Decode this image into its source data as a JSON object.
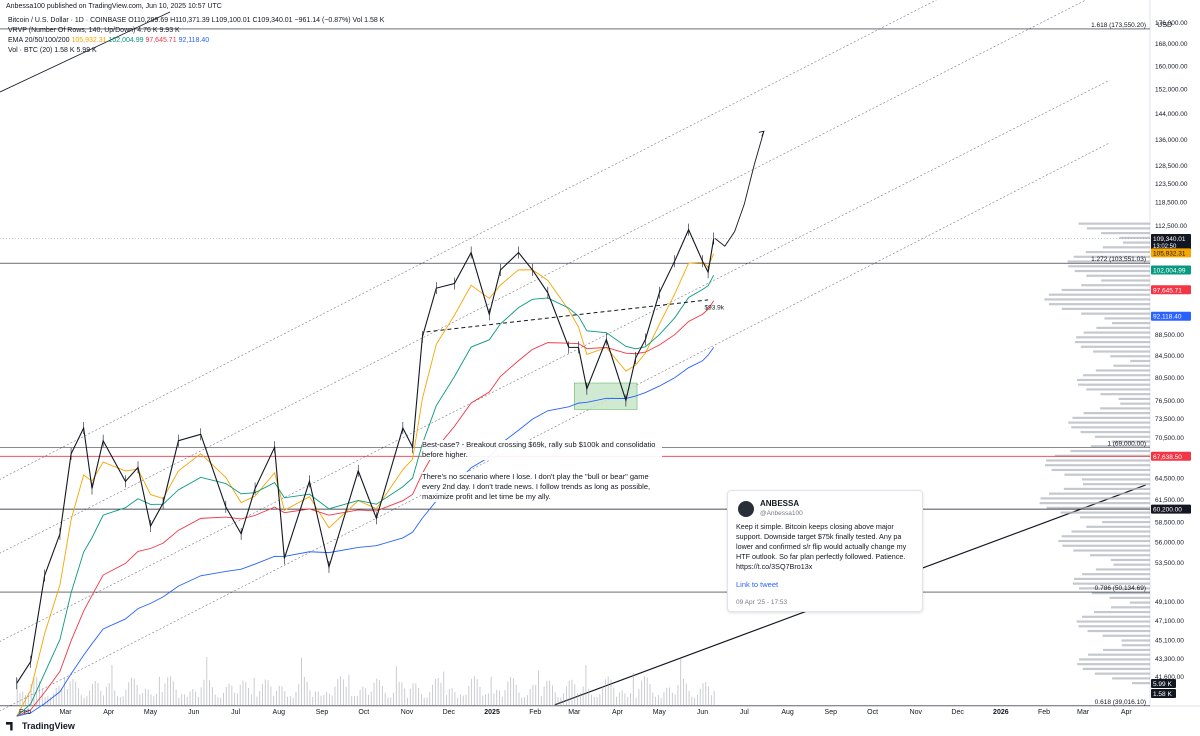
{
  "publish_line": "Anbessa100 published on TradingView.com, Jun 10, 2025 10:57 UTC",
  "currency": "USD",
  "legend": {
    "line1": "Bitcoin / U.S. Dollar · 1D · COINBASE  O110,299.69  H110,371.39  L109,100.01  C109,340.01  −961.14 (−0.87%)  Vol 1.58 K",
    "line2": "VRVP (Number Of Rows, 140, Up/Down)  4.76 K  9.93 K",
    "line3_label": "EMA 20/50/100/200",
    "line3_values": [
      "105,932.31",
      "102,004.99",
      "97,645.71",
      "92,118.40"
    ],
    "line4": "Vol · BTC (20)  1.58 K  5.99 K"
  },
  "notes": {
    "best_case": "Best-case? - Breakout crossing $69k, rally sub $100k and consolidatio before higher.",
    "scenario": "There's no scenario where I lose. I don't play the \"bull or bear\" game every 2nd day. I don't trade news. I follow trends as long as possible, maximize profit and let time be my ally."
  },
  "tweet": {
    "name": "ANBESSA",
    "handle": "@Anbessa100",
    "body": "Keep it simple. Bitcoin keeps closing above major support. Downside target $75k finally tested. Any pa lower and confirmed s/r flip would actually change my HTF outlook. So far plan perfectly followed. Patience. https://t.co/3SQ7Bro13x",
    "link": "Link to tweet",
    "date": "09 Apr '25 - 17:53"
  },
  "brand": "TradingView",
  "chart_data": {
    "type": "line",
    "title": "Bitcoin / U.S. Dollar · 1D · COINBASE",
    "x_ticks": [
      "Feb",
      "Mar",
      "Apr",
      "May",
      "Jun",
      "Jul",
      "Aug",
      "Sep",
      "Oct",
      "Nov",
      "Dec",
      "2025",
      "Feb",
      "Mar",
      "Apr",
      "May",
      "Jun",
      "Jul",
      "Aug",
      "Sep",
      "Oct",
      "Nov",
      "Dec",
      "2026",
      "Feb",
      "Mar",
      "Apr"
    ],
    "y_ticks": [
      "176,000.00",
      "168,000.00",
      "160,000.00",
      "152,000.00",
      "144,000.00",
      "136,000.00",
      "128,500.00",
      "123,500.00",
      "118,500.00",
      "112,500.00",
      "88,500.00",
      "84,500.00",
      "80,500.00",
      "76,500.00",
      "73,500.00",
      "70,500.00",
      "64,500.00",
      "61,500.00",
      "58,500.00",
      "56,000.00",
      "53,500.00",
      "49,100.00",
      "47,100.00",
      "45,100.00",
      "43,300.00",
      "41,600.00"
    ],
    "price_scale": "log",
    "y_range": [
      39000,
      185000
    ],
    "price_series": {
      "name": "BTC/USD",
      "x": [
        "2024-01-26",
        "2024-02-05",
        "2024-02-15",
        "2024-02-26",
        "2024-03-05",
        "2024-03-14",
        "2024-03-20",
        "2024-03-28",
        "2024-04-13",
        "2024-04-22",
        "2024-05-01",
        "2024-05-10",
        "2024-05-21",
        "2024-06-06",
        "2024-06-24",
        "2024-07-05",
        "2024-07-15",
        "2024-07-29",
        "2024-08-05",
        "2024-08-23",
        "2024-09-06",
        "2024-09-27",
        "2024-10-10",
        "2024-10-29",
        "2024-11-05",
        "2024-11-12",
        "2024-11-22",
        "2024-12-05",
        "2024-12-17",
        "2024-12-30",
        "2025-01-07",
        "2025-01-20",
        "2025-01-30",
        "2025-02-10",
        "2025-02-25",
        "2025-03-04",
        "2025-03-10",
        "2025-03-24",
        "2025-04-07",
        "2025-04-14",
        "2025-04-21",
        "2025-05-01",
        "2025-05-12",
        "2025-05-22",
        "2025-06-01",
        "2025-06-05",
        "2025-06-09"
      ],
      "y": [
        41000,
        43000,
        52000,
        57000,
        68000,
        72000,
        63000,
        70000,
        64000,
        66000,
        58000,
        61000,
        70000,
        71000,
        60500,
        57000,
        63000,
        69000,
        54000,
        64000,
        53000,
        65500,
        59000,
        72000,
        69000,
        88000,
        98000,
        99000,
        106000,
        92500,
        102000,
        106000,
        102000,
        97000,
        86000,
        86000,
        78500,
        87500,
        76500,
        84000,
        87500,
        97000,
        104000,
        111500,
        104000,
        101500,
        109340
      ]
    },
    "projection": {
      "name": "Projection",
      "x": [
        "2025-06-10",
        "2025-06-17",
        "2025-06-24",
        "2025-07-01",
        "2025-07-08",
        "2025-07-15"
      ],
      "y": [
        109340,
        107500,
        111000,
        118000,
        128500,
        138500
      ]
    },
    "ema": [
      {
        "name": "EMA 20",
        "value": 105932.31,
        "color": "#f7a500"
      },
      {
        "name": "EMA 50",
        "value": 102004.99,
        "color": "#089981"
      },
      {
        "name": "EMA 100",
        "value": 97645.71,
        "color": "#f23645"
      },
      {
        "name": "EMA 200",
        "value": 92118.4,
        "color": "#2962ff"
      }
    ],
    "fib_levels": [
      {
        "label": "1.618 (173,550.20)",
        "value": 173550.2
      },
      {
        "label": "1.272 (103,551.03)",
        "value": 103551.03
      },
      {
        "label": "1 (69,000.00)",
        "value": 69000.0
      },
      {
        "label": "0.786 (50,134.69)",
        "value": 50134.69
      },
      {
        "label": "0.618 (39,016.10)",
        "value": 39016.1
      }
    ],
    "horizontal_lines": [
      {
        "value": 67638.5,
        "color": "#f23645"
      },
      {
        "value": 60200.0,
        "color": "#131722"
      }
    ],
    "price_badges": [
      {
        "label": "109,340.01",
        "sub": "13:02:50",
        "value": 109340.01,
        "bg": "#131722",
        "fg": "#ffffff"
      },
      {
        "label": "105,932.31",
        "value": 105932.31,
        "bg": "#f7a500",
        "fg": "#131722"
      },
      {
        "label": "102,004.99",
        "value": 102004.99,
        "bg": "#089981",
        "fg": "#ffffff"
      },
      {
        "label": "97,645.71",
        "value": 97645.71,
        "bg": "#f23645",
        "fg": "#ffffff"
      },
      {
        "label": "92,118.40",
        "value": 92118.4,
        "bg": "#2962ff",
        "fg": "#ffffff"
      },
      {
        "label": "67,638.50",
        "value": 67638.5,
        "bg": "#f23645",
        "fg": "#ffffff"
      },
      {
        "label": "60,200.00",
        "value": 60200.0,
        "bg": "#131722",
        "fg": "#ffffff"
      }
    ],
    "volume_badges": [
      "5.99 K",
      "1.58 K"
    ],
    "annotations": [
      {
        "text": "$93.9k",
        "x": "2025-06-01",
        "y": 93900
      }
    ],
    "demand_zone": {
      "x": [
        "2025-03-01",
        "2025-04-15"
      ],
      "y": [
        75000,
        79500
      ]
    },
    "colors": {
      "volume": "#9598a1",
      "channel": "#787b86",
      "profile": "#b2b5be"
    }
  }
}
